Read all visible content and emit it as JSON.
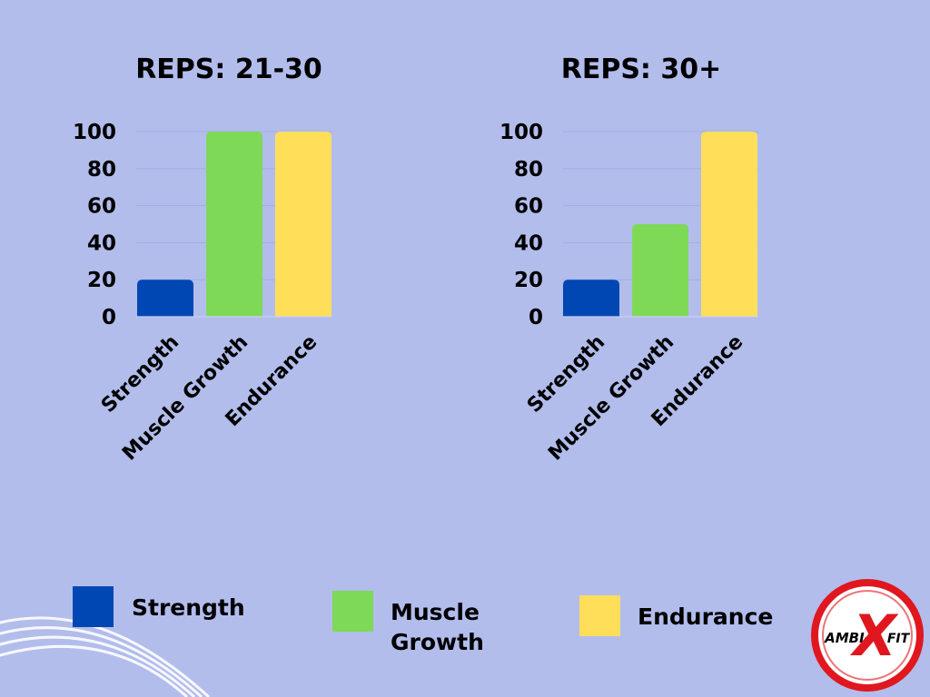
{
  "colors": {
    "background": "#b2bdec",
    "strength": "#0047b3",
    "muscle_growth": "#7ed957",
    "endurance": "#ffde59",
    "logo_red": "#e0171f"
  },
  "chart_data": [
    {
      "type": "bar",
      "title": "REPS: 21-30",
      "categories": [
        "Strength",
        "Muscle Growth",
        "Endurance"
      ],
      "values": [
        20,
        100,
        100
      ],
      "ylim": [
        0,
        100
      ],
      "yticks": [
        "100",
        "80",
        "60",
        "40",
        "20",
        "0"
      ],
      "xlabel": "",
      "ylabel": ""
    },
    {
      "type": "bar",
      "title": "REPS: 30+",
      "categories": [
        "Strength",
        "Muscle Growth",
        "Endurance"
      ],
      "values": [
        20,
        50,
        100
      ],
      "ylim": [
        0,
        100
      ],
      "yticks": [
        "100",
        "80",
        "60",
        "40",
        "20",
        "0"
      ],
      "xlabel": "",
      "ylabel": ""
    }
  ],
  "legend": [
    {
      "label_lines": [
        "Strength"
      ],
      "color_key": "strength"
    },
    {
      "label_lines": [
        "Muscle",
        "Growth"
      ],
      "color_key": "muscle_growth"
    },
    {
      "label_lines": [
        "Endurance"
      ],
      "color_key": "endurance"
    }
  ],
  "logo": {
    "left": "AMBI-",
    "mark": "X",
    "right": "FIT",
    "icon": "ambi-x-fit-logo"
  }
}
